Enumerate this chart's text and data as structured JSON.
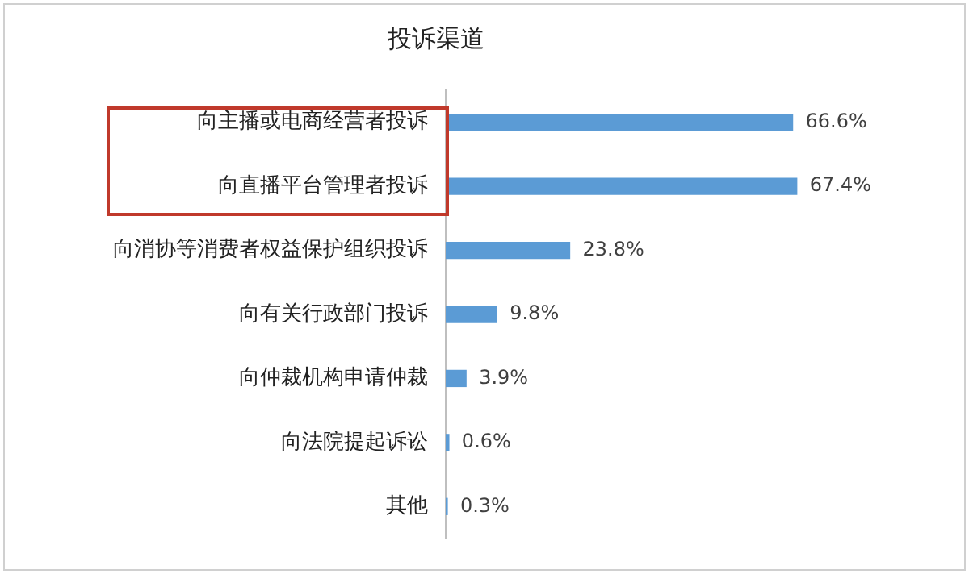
{
  "chart_data": {
    "type": "bar",
    "orientation": "horizontal",
    "title": "投诉渠道",
    "categories": [
      "向主播或电商经营者投诉",
      "向直播平台管理者投诉",
      "向消协等消费者权益保护组织投诉",
      "向有关行政部门投诉",
      "向仲裁机构申请仲裁",
      "向法院提起诉讼",
      "其他"
    ],
    "values": [
      66.6,
      67.4,
      23.8,
      9.8,
      3.9,
      0.6,
      0.3
    ],
    "value_labels": [
      "66.6%",
      "67.4%",
      "23.8%",
      "9.8%",
      "3.9%",
      "0.6%",
      "0.3%"
    ],
    "color": "#5b9bd5",
    "tick_labels": "y",
    "grid": false,
    "legend": false
  }
}
